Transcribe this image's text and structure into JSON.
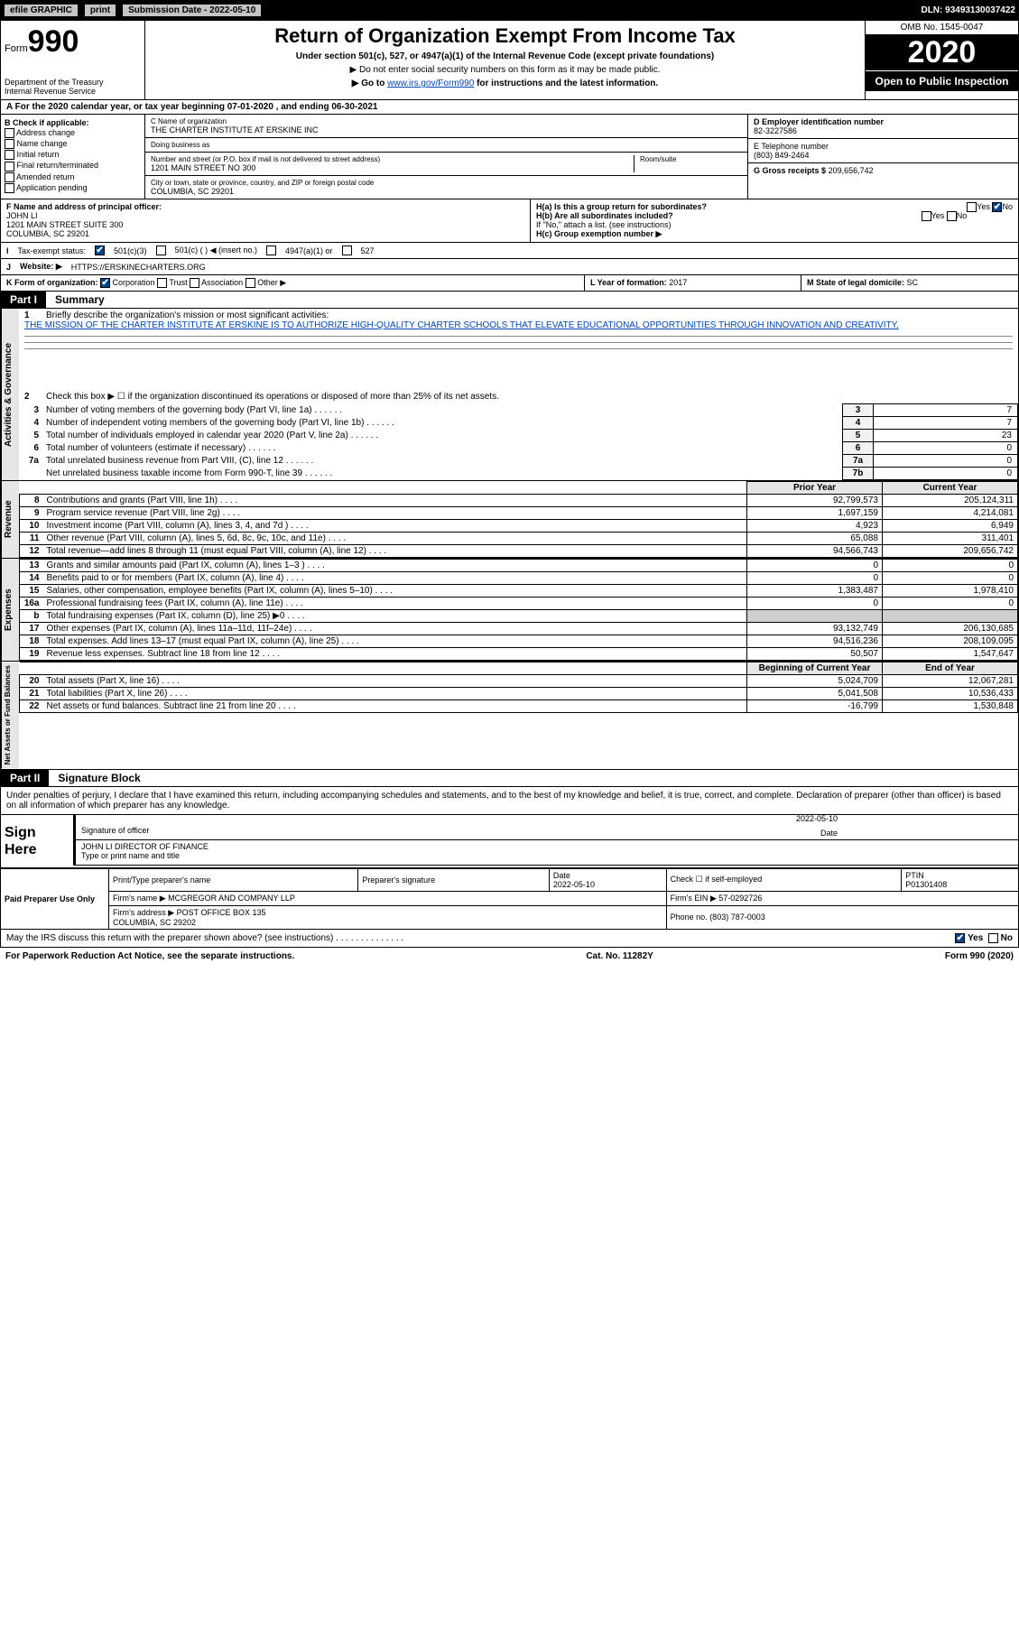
{
  "topbar": {
    "efile": "efile GRAPHIC",
    "print": "print",
    "submission_label": "Submission Date - 2022-05-10",
    "dln": "DLN: 93493130037422"
  },
  "header": {
    "form_word": "Form",
    "form_num": "990",
    "dept": "Department of the Treasury\nInternal Revenue Service",
    "title": "Return of Organization Exempt From Income Tax",
    "sub": "Under section 501(c), 527, or 4947(a)(1) of the Internal Revenue Code (except private foundations)",
    "sub2a": "▶ Do not enter social security numbers on this form as it may be made public.",
    "sub2b_pre": "▶ Go to ",
    "sub2b_link": "www.irs.gov/Form990",
    "sub2b_post": " for instructions and the latest information.",
    "omb": "OMB No. 1545-0047",
    "year": "2020",
    "open": "Open to Public Inspection"
  },
  "A": "For the 2020 calendar year, or tax year beginning 07-01-2020   , and ending 06-30-2021",
  "B": {
    "hdr": "B Check if applicable:",
    "opts": [
      "Address change",
      "Name change",
      "Initial return",
      "Final return/terminated",
      "Amended return",
      "Application pending"
    ]
  },
  "C": {
    "name_lbl": "C Name of organization",
    "name": "THE CHARTER INSTITUTE AT ERSKINE INC",
    "dba_lbl": "Doing business as",
    "dba": "",
    "addr_lbl": "Number and street (or P.O. box if mail is not delivered to street address)",
    "addr": "1201 MAIN STREET NO 300",
    "room_lbl": "Room/suite",
    "city_lbl": "City or town, state or province, country, and ZIP or foreign postal code",
    "city": "COLUMBIA, SC  29201"
  },
  "D": {
    "lbl": "D Employer identification number",
    "val": "82-3227586"
  },
  "E": {
    "lbl": "E Telephone number",
    "val": "(803) 849-2464"
  },
  "G": {
    "lbl": "G Gross receipts $",
    "val": "209,656,742"
  },
  "F": {
    "lbl": "F  Name and address of principal officer:",
    "name": "JOHN LI",
    "addr": "1201 MAIN STREET SUITE 300\nCOLUMBIA, SC  29201"
  },
  "H": {
    "a": "H(a)  Is this a group return for subordinates?",
    "a_yes": "Yes",
    "a_no": "No",
    "b": "H(b)  Are all subordinates included?",
    "b_note": "If \"No,\" attach a list. (see instructions)",
    "c": "H(c)  Group exemption number ▶"
  },
  "I": {
    "lbl": "Tax-exempt status:",
    "opt1": "501(c)(3)",
    "opt2": "501(c) (   ) ◀ (insert no.)",
    "opt3": "4947(a)(1) or",
    "opt4": "527"
  },
  "J": {
    "lbl": "Website: ▶",
    "val": "HTTPS://ERSKINECHARTERS.ORG"
  },
  "K": {
    "lbl": "K Form of organization:",
    "opts": [
      "Corporation",
      "Trust",
      "Association",
      "Other ▶"
    ]
  },
  "L": {
    "lbl": "L Year of formation:",
    "val": "2017"
  },
  "M": {
    "lbl": "M State of legal domicile:",
    "val": "SC"
  },
  "part1": {
    "tag": "Part I",
    "title": "Summary"
  },
  "gov": {
    "label": "Activities & Governance",
    "l1": "Briefly describe the organization's mission or most significant activities:",
    "mission": "THE MISSION OF THE CHARTER INSTITUTE AT ERSKINE IS TO AUTHORIZE HIGH-QUALITY CHARTER SCHOOLS THAT ELEVATE EDUCATIONAL OPPORTUNITIES THROUGH INNOVATION AND CREATIVITY.",
    "l2": "Check this box ▶ ☐  if the organization discontinued its operations or disposed of more than 25% of its net assets.",
    "rows": [
      {
        "n": "3",
        "d": "Number of voting members of the governing body (Part VI, line 1a)",
        "box": "3",
        "v": "7"
      },
      {
        "n": "4",
        "d": "Number of independent voting members of the governing body (Part VI, line 1b)",
        "box": "4",
        "v": "7"
      },
      {
        "n": "5",
        "d": "Total number of individuals employed in calendar year 2020 (Part V, line 2a)",
        "box": "5",
        "v": "23"
      },
      {
        "n": "6",
        "d": "Total number of volunteers (estimate if necessary)",
        "box": "6",
        "v": "0"
      },
      {
        "n": "7a",
        "d": "Total unrelated business revenue from Part VIII, (C), line 12",
        "box": "7a",
        "v": "0"
      },
      {
        "n": "",
        "d": "Net unrelated business taxable income from Form 990-T, line 39",
        "box": "7b",
        "v": "0"
      }
    ]
  },
  "rev": {
    "label": "Revenue",
    "hdr_py": "Prior Year",
    "hdr_cy": "Current Year",
    "rows": [
      {
        "n": "8",
        "d": "Contributions and grants (Part VIII, line 1h)",
        "py": "92,799,573",
        "cy": "205,124,311"
      },
      {
        "n": "9",
        "d": "Program service revenue (Part VIII, line 2g)",
        "py": "1,697,159",
        "cy": "4,214,081"
      },
      {
        "n": "10",
        "d": "Investment income (Part VIII, column (A), lines 3, 4, and 7d )",
        "py": "4,923",
        "cy": "6,949"
      },
      {
        "n": "11",
        "d": "Other revenue (Part VIII, column (A), lines 5, 6d, 8c, 9c, 10c, and 11e)",
        "py": "65,088",
        "cy": "311,401"
      },
      {
        "n": "12",
        "d": "Total revenue—add lines 8 through 11 (must equal Part VIII, column (A), line 12)",
        "py": "94,566,743",
        "cy": "209,656,742"
      }
    ]
  },
  "exp": {
    "label": "Expenses",
    "rows": [
      {
        "n": "13",
        "d": "Grants and similar amounts paid (Part IX, column (A), lines 1–3 )",
        "py": "0",
        "cy": "0"
      },
      {
        "n": "14",
        "d": "Benefits paid to or for members (Part IX, column (A), line 4)",
        "py": "0",
        "cy": "0"
      },
      {
        "n": "15",
        "d": "Salaries, other compensation, employee benefits (Part IX, column (A), lines 5–10)",
        "py": "1,383,487",
        "cy": "1,978,410"
      },
      {
        "n": "16a",
        "d": "Professional fundraising fees (Part IX, column (A), line 11e)",
        "py": "0",
        "cy": "0"
      },
      {
        "n": "b",
        "d": "Total fundraising expenses (Part IX, column (D), line 25) ▶0",
        "py": "grey",
        "cy": "grey"
      },
      {
        "n": "17",
        "d": "Other expenses (Part IX, column (A), lines 11a–11d, 11f–24e)",
        "py": "93,132,749",
        "cy": "206,130,685"
      },
      {
        "n": "18",
        "d": "Total expenses. Add lines 13–17 (must equal Part IX, column (A), line 25)",
        "py": "94,516,236",
        "cy": "208,109,095"
      },
      {
        "n": "19",
        "d": "Revenue less expenses. Subtract line 18 from line 12",
        "py": "50,507",
        "cy": "1,547,647"
      }
    ]
  },
  "net": {
    "label": "Net Assets or Fund Balances",
    "hdr_py": "Beginning of Current Year",
    "hdr_cy": "End of Year",
    "rows": [
      {
        "n": "20",
        "d": "Total assets (Part X, line 16)",
        "py": "5,024,709",
        "cy": "12,067,281"
      },
      {
        "n": "21",
        "d": "Total liabilities (Part X, line 26)",
        "py": "5,041,508",
        "cy": "10,536,433"
      },
      {
        "n": "22",
        "d": "Net assets or fund balances. Subtract line 21 from line 20",
        "py": "-16,799",
        "cy": "1,530,848"
      }
    ]
  },
  "part2": {
    "tag": "Part II",
    "title": "Signature Block"
  },
  "sig": {
    "decl": "Under penalties of perjury, I declare that I have examined this return, including accompanying schedules and statements, and to the best of my knowledge and belief, it is true, correct, and complete. Declaration of preparer (other than officer) is based on all information of which preparer has any knowledge.",
    "sign_here": "Sign Here",
    "sig_officer_lbl": "Signature of officer",
    "date_lbl": "Date",
    "date": "2022-05-10",
    "name_title": "JOHN LI  DIRECTOR OF FINANCE",
    "type_lbl": "Type or print name and title"
  },
  "paid": {
    "hdr": "Paid Preparer Use Only",
    "cols": [
      "Print/Type preparer's name",
      "Preparer's signature",
      "Date",
      "Check ☐ if self-employed",
      "PTIN"
    ],
    "date": "2022-05-10",
    "ptin": "P01301408",
    "firm_name_lbl": "Firm's name   ▶",
    "firm_name": "MCGREGOR AND COMPANY LLP",
    "firm_ein_lbl": "Firm's EIN ▶",
    "firm_ein": "57-0292726",
    "firm_addr_lbl": "Firm's address ▶",
    "firm_addr": "POST OFFICE BOX 135\nCOLUMBIA, SC  29202",
    "phone_lbl": "Phone no.",
    "phone": "(803) 787-0003"
  },
  "discuss": "May the IRS discuss this return with the preparer shown above? (see instructions)",
  "discuss_yes": "Yes",
  "discuss_no": "No",
  "footer": {
    "left": "For Paperwork Reduction Act Notice, see the separate instructions.",
    "mid": "Cat. No. 11282Y",
    "right": "Form 990 (2020)"
  }
}
